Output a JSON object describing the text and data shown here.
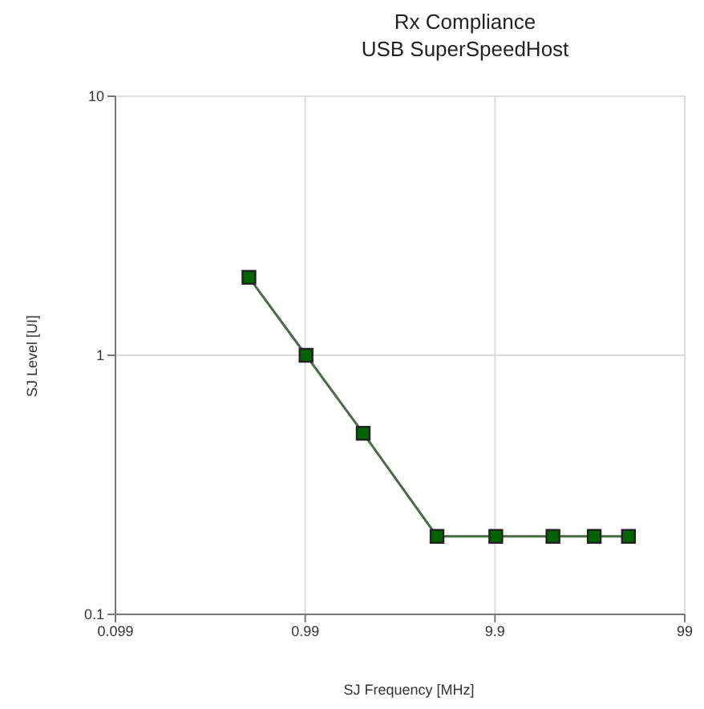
{
  "chart_data": {
    "type": "line",
    "title": "Rx Compliance",
    "subtitle": "USB SuperSpeedHost",
    "xlabel": "SJ Frequency [MHz]",
    "ylabel": "SJ Level [UI]",
    "x": [
      0.5,
      1,
      2,
      4.9,
      10,
      20,
      33,
      50
    ],
    "series": [
      {
        "color": "#006400",
        "values": [
          2,
          1,
          0.5,
          0.2,
          0.2,
          0.2,
          0.2,
          0.2
        ]
      }
    ],
    "xlim": [
      0.099,
      99
    ],
    "xticks": [
      0.099,
      0.99,
      9.9,
      99
    ],
    "ylim": [
      0.1,
      10
    ],
    "yticks": [
      0.1,
      1,
      10
    ],
    "log": "xy",
    "grid": true,
    "marker": "square",
    "line_style": "solid"
  }
}
